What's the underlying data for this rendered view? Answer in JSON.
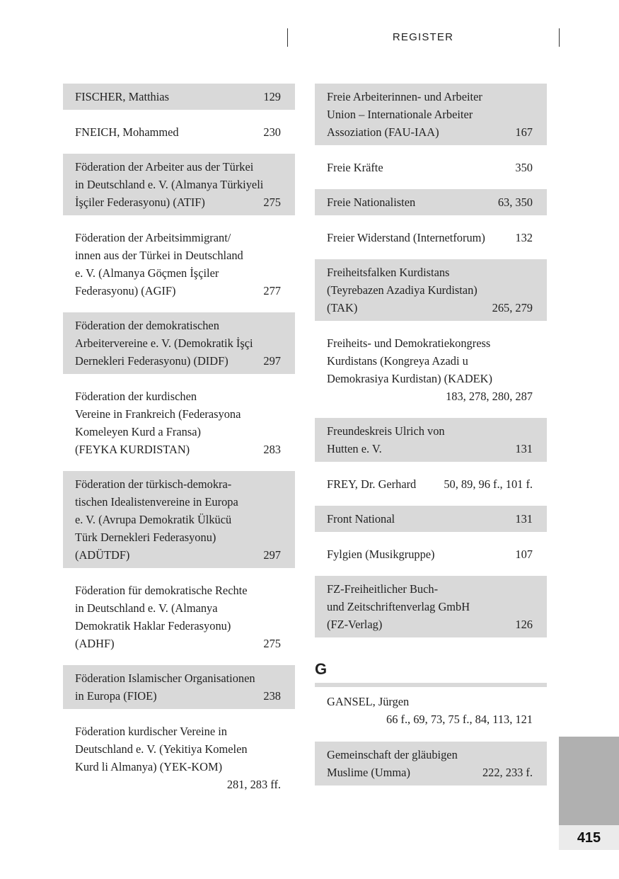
{
  "header": {
    "title": "REGISTER"
  },
  "page_number": "415",
  "colors": {
    "shade": "#d9d9d9",
    "tab": "#b0b0b0",
    "tab_number_bg": "#ebebeb"
  },
  "left_column": [
    {
      "lines": [
        "FISCHER, Matthias"
      ],
      "pages": "129",
      "shaded": true
    },
    {
      "lines": [
        "FNEICH, Mohammed"
      ],
      "pages": "230",
      "shaded": false
    },
    {
      "lines": [
        "Föderation der Arbeiter aus der Türkei",
        "in Deutschland e. V. (Almanya Türkiyeli",
        "İşçiler Federasyonu) (ATIF)"
      ],
      "pages": "275",
      "shaded": true
    },
    {
      "lines": [
        "Föderation der Arbeitsimmigrant/",
        "innen aus der Türkei in Deutschland",
        "e. V. (Almanya Göçmen İşçiler",
        "Federasyonu) (AGIF)"
      ],
      "pages": "277",
      "shaded": false
    },
    {
      "lines": [
        "Föderation der demokratischen",
        "Arbeitervereine e. V. (Demokratik İşçi",
        "Dernekleri Federasyonu) (DIDF)"
      ],
      "pages": "297",
      "shaded": true
    },
    {
      "lines": [
        "Föderation der kurdischen",
        "Vereine in Frankreich (Federasyona",
        "Komeleyen Kurd a Fransa)",
        "(FEYKA KURDISTAN)"
      ],
      "pages": "283",
      "shaded": false
    },
    {
      "lines": [
        "Föderation der türkisch-demokra-",
        "tischen Idealistenvereine in Europa",
        "e. V. (Avrupa Demokratik Ülkücü",
        "Türk Dernekleri Federasyonu)",
        "(ADÜTDF)"
      ],
      "pages": "297",
      "shaded": true
    },
    {
      "lines": [
        "Föderation für demokratische Rechte",
        "in Deutschland e. V. (Almanya",
        "Demokratik Haklar Federasyonu)",
        "(ADHF)"
      ],
      "pages": "275",
      "shaded": false
    },
    {
      "lines": [
        "Föderation Islamischer Organisationen",
        "in Europa (FIOE)"
      ],
      "pages": "238",
      "shaded": true
    },
    {
      "lines": [
        "Föderation kurdischer Vereine in",
        "Deutschland e. V. (Yekitiya Komelen",
        "Kurd li Almanya) (YEK-KOM)"
      ],
      "pages": "281, 283 ff.",
      "pages_on_own_line": true,
      "shaded": false
    }
  ],
  "right_column": [
    {
      "lines": [
        "Freie Arbeiterinnen- und Arbeiter",
        "Union – Internationale Arbeiter",
        "Assoziation (FAU-IAA)"
      ],
      "pages": "167",
      "shaded": true
    },
    {
      "lines": [
        "Freie Kräfte"
      ],
      "pages": "350",
      "shaded": false
    },
    {
      "lines": [
        "Freie Nationalisten"
      ],
      "pages": "63, 350",
      "shaded": true
    },
    {
      "lines": [
        "Freier Widerstand (Internetforum)"
      ],
      "pages": "132",
      "shaded": false
    },
    {
      "lines": [
        "Freiheitsfalken Kurdistans",
        "(Teyrebazen Azadiya Kurdistan)",
        "(TAK)"
      ],
      "pages": "265, 279",
      "shaded": true
    },
    {
      "lines": [
        "Freiheits- und Demokratiekongress",
        "Kurdistans (Kongreya Azadi u",
        "Demokrasiya Kurdistan) (KADEK)"
      ],
      "pages": "183, 278, 280, 287",
      "pages_on_own_line": true,
      "shaded": false
    },
    {
      "lines": [
        "Freundeskreis Ulrich von",
        "Hutten e. V."
      ],
      "pages": "131",
      "shaded": true
    },
    {
      "lines": [
        "FREY, Dr. Gerhard"
      ],
      "pages": "50, 89, 96 f., 101 f.",
      "shaded": false
    },
    {
      "lines": [
        "Front National"
      ],
      "pages": "131",
      "shaded": true
    },
    {
      "lines": [
        "Fylgien (Musikgruppe)"
      ],
      "pages": "107",
      "shaded": false
    },
    {
      "lines": [
        "FZ-Freiheitlicher Buch-",
        "und Zeitschriftenverlag GmbH",
        "(FZ-Verlag)"
      ],
      "pages": "126",
      "shaded": true
    }
  ],
  "section_g": {
    "letter": "G",
    "entries": [
      {
        "lines": [
          "GANSEL, Jürgen"
        ],
        "pages": "66 f., 69, 73, 75 f., 84, 113, 121",
        "pages_on_own_line": true,
        "shaded": false
      },
      {
        "lines": [
          "Gemeinschaft der gläubigen",
          "Muslime (Umma)"
        ],
        "pages": "222, 233 f.",
        "shaded": true
      }
    ]
  }
}
